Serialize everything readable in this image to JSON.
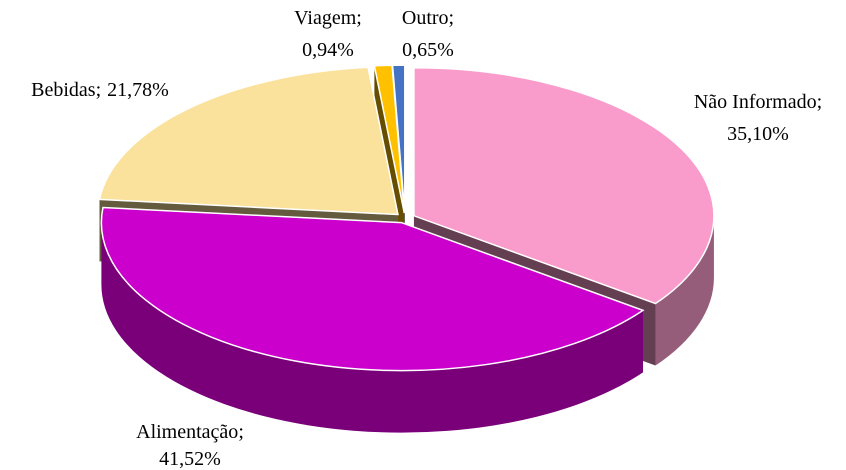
{
  "chart_data": {
    "type": "pie3d",
    "categories": [
      "Não Informado",
      "Alimentação",
      "Bebidas",
      "Viagem",
      "Outro"
    ],
    "values": [
      35.1,
      41.52,
      21.78,
      0.94,
      0.65
    ],
    "value_labels": [
      "35,10%",
      "41,52%",
      "21,78%",
      "0,94%",
      "0,65%"
    ],
    "label_separator": ";",
    "colors": [
      "#f99bcb",
      "#cc00cc",
      "#fae29c",
      "#ffc000",
      "#4472c4"
    ]
  }
}
